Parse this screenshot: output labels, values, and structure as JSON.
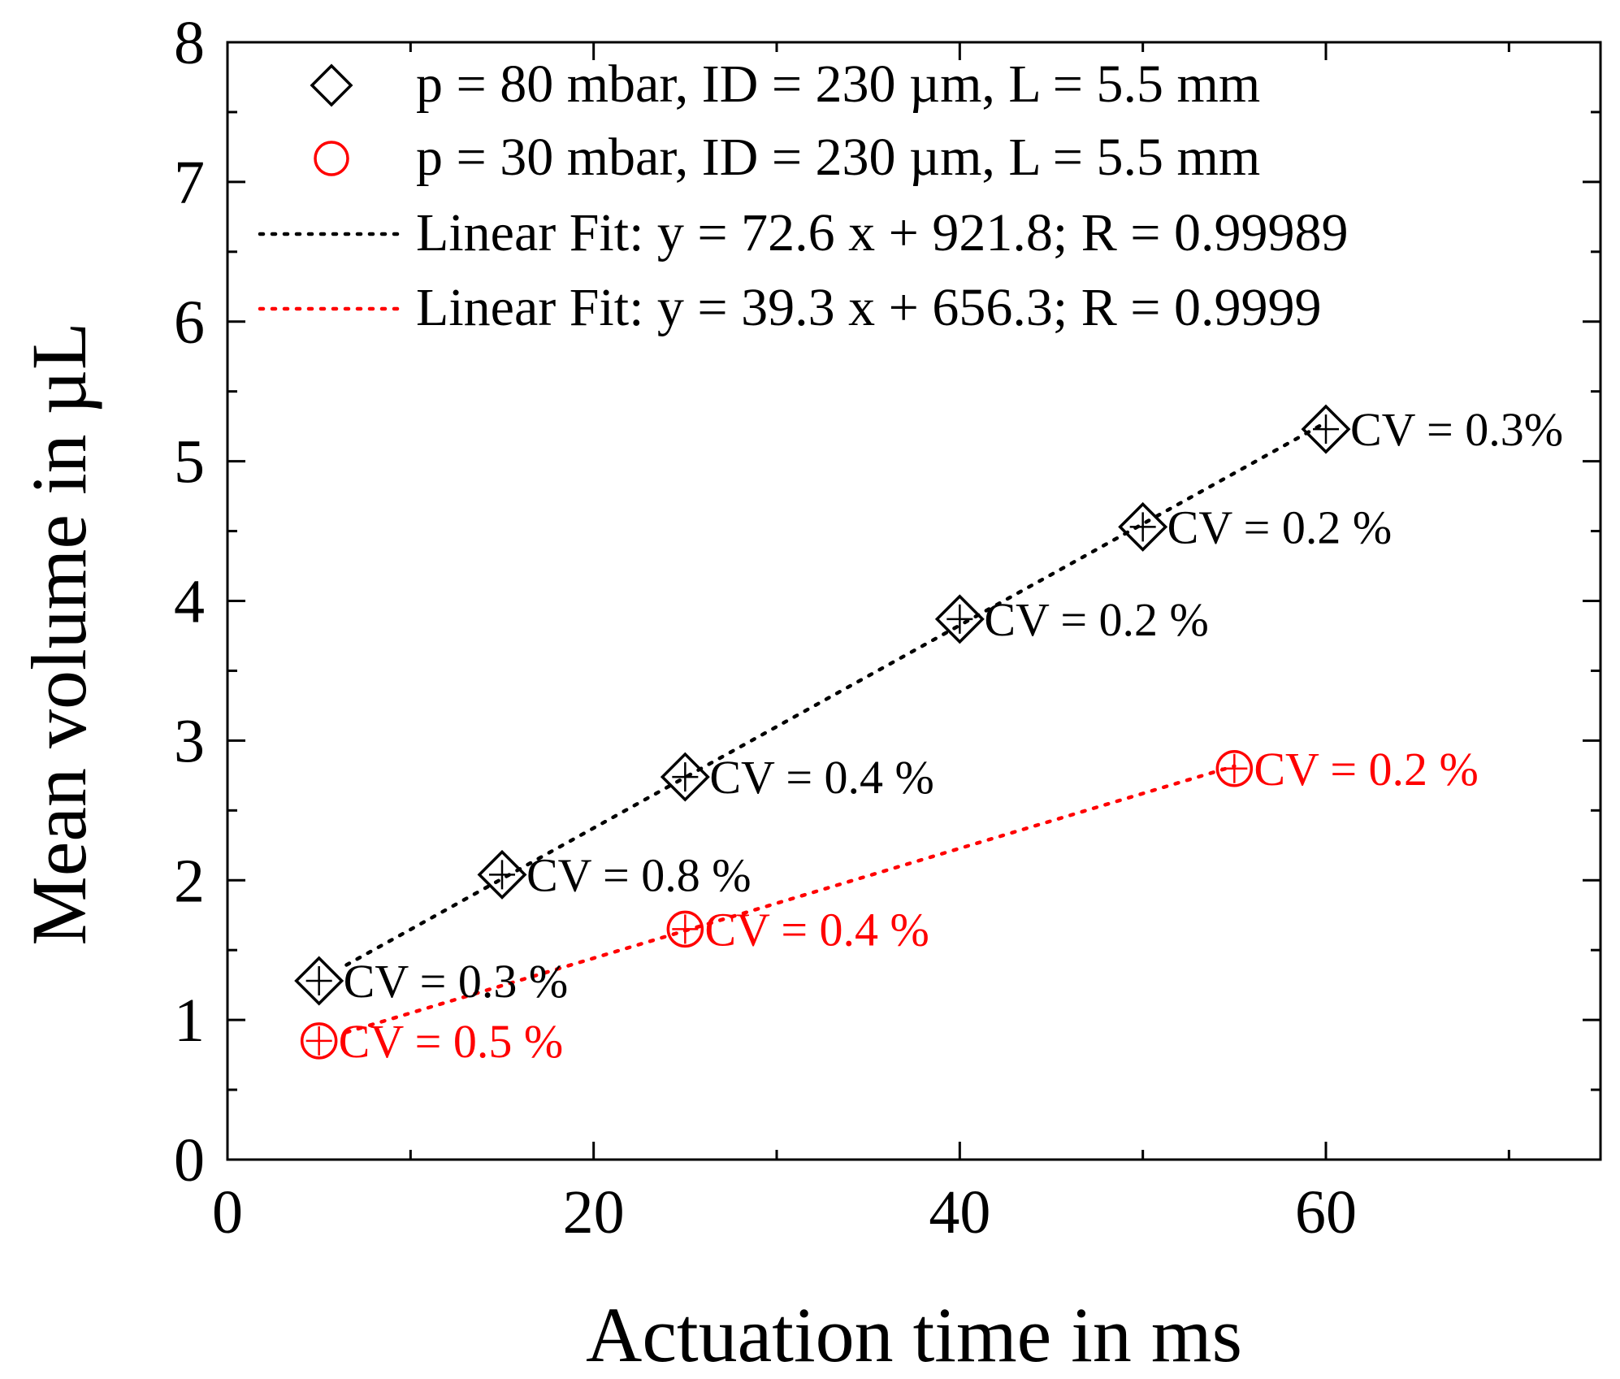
{
  "chart_data": {
    "type": "scatter",
    "xlabel": "Actuation time in ms",
    "ylabel": "Mean volume in µL",
    "xlim": [
      0,
      75
    ],
    "ylim": [
      0,
      8
    ],
    "xticks": [
      0,
      20,
      40,
      60
    ],
    "yticks": [
      0,
      1,
      2,
      3,
      4,
      5,
      6,
      7,
      8
    ],
    "grid": false,
    "legend_position": "top-left",
    "colors": {
      "series1": "#000000",
      "series2": "#ff0000"
    },
    "series": [
      {
        "name": "p = 80 mbar, ID = 230 µm, L = 5.5 mm",
        "marker": "diamond",
        "color": "#000000",
        "x": [
          5,
          15,
          25,
          40,
          50,
          60
        ],
        "y": [
          1.28,
          2.04,
          2.74,
          3.87,
          4.53,
          5.23
        ],
        "labels": [
          "CV = 0.3 %",
          "CV = 0.8 %",
          "CV = 0.4 %",
          "CV = 0.2 %",
          "CV = 0.2 %",
          "CV = 0.3%"
        ]
      },
      {
        "name": "p = 30 mbar, ID = 230 µm, L = 5.5 mm",
        "marker": "circle",
        "color": "#ff0000",
        "x": [
          5,
          25,
          55
        ],
        "y": [
          0.85,
          1.65,
          2.8
        ],
        "labels": [
          "CV = 0.5 %",
          "CV = 0.4 %",
          "CV = 0.2 %"
        ]
      }
    ],
    "fits": [
      {
        "name": "Linear Fit: y = 72.6 x + 921.8; R = 0.99989",
        "color": "#000000",
        "slope": 72.6,
        "intercept": 921.8,
        "scale": 0.001,
        "x_range": [
          6.5,
          60
        ]
      },
      {
        "name": "Linear Fit: y = 39.3 x + 656.3; R = 0.9999",
        "color": "#ff0000",
        "slope": 39.3,
        "intercept": 656.3,
        "scale": 0.001,
        "x_range": [
          6.5,
          55
        ]
      }
    ]
  }
}
